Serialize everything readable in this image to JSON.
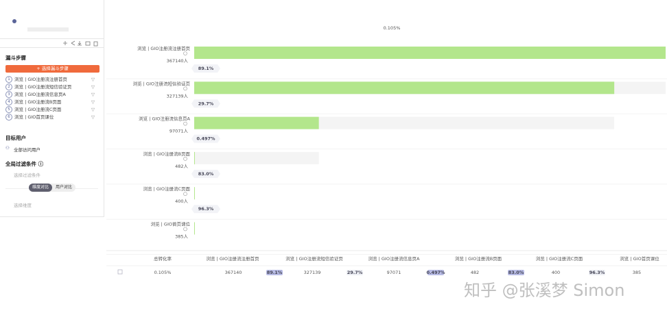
{
  "sidebar": {
    "funnel_title": "漏斗步骤",
    "add_step_button": "+ 选择漏斗步骤",
    "target_title": "目标用户",
    "target_value": "全部访问用户",
    "filter_title": "全局过滤条件 ⓘ",
    "filter_placeholder": "选择过滤条件",
    "compare_tabs": [
      "维度对比",
      "用户对比"
    ],
    "dimension_placeholder": "选择维度"
  },
  "chart_data": {
    "type": "funnel",
    "title": "0.105%",
    "categories": [
      "浏览 | GIO注册流注册首页",
      "浏览 | GIO注册流短信验证页",
      "浏览 | GIO注册流信息页A",
      "浏览 | GIO注册流B页面",
      "浏览 | GIO注册流C页面",
      "浏览 | GIO首页课位"
    ],
    "values": [
      367140,
      327139,
      97071,
      482,
      400,
      385
    ],
    "value_labels": [
      "367140人",
      "327139人",
      "97071人",
      "482人",
      "400人",
      "385人"
    ],
    "conversion_rates": [
      89.1,
      29.7,
      0.497,
      83.0,
      96.3
    ],
    "conversion_rate_labels": [
      "89.1%",
      "29.7%",
      "0.497%",
      "83.0%",
      "96.3%"
    ],
    "color": "#b3e68c",
    "background_color": "#f4f4f4"
  },
  "table": {
    "total_header": "总转化率"
  },
  "watermark": "知乎 @张溪梦 Simon"
}
